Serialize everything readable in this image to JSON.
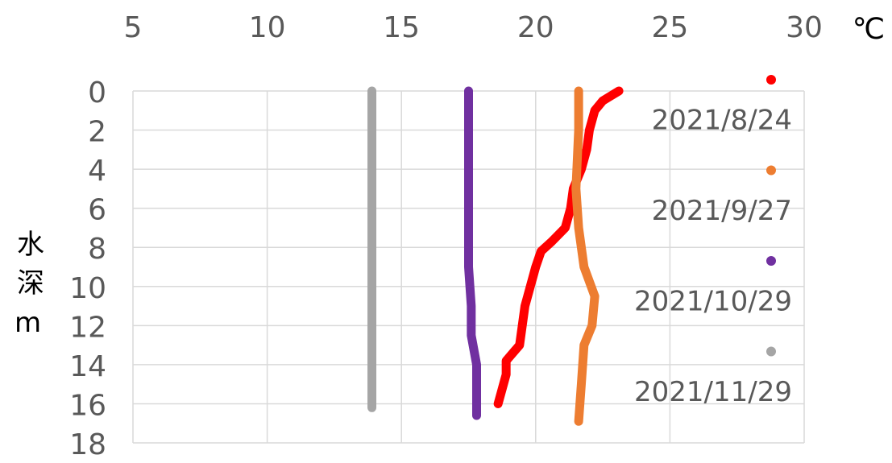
{
  "chart_data": {
    "type": "scatter",
    "x_label": "℃",
    "y_label": "水深m",
    "xlim": [
      5,
      30
    ],
    "xticks": [
      5,
      10,
      15,
      20,
      25,
      30
    ],
    "ylim": [
      0,
      18
    ],
    "yticks": [
      0,
      2,
      4,
      6,
      8,
      10,
      12,
      14,
      16,
      18
    ],
    "y_inverted": true,
    "grid": true,
    "legend": "right",
    "series": [
      {
        "name": "2021/8/24",
        "color": "#ff0000",
        "x": [
          23.1,
          22.5,
          22.2,
          22.0,
          21.9,
          21.7,
          21.4,
          21.3,
          21.1,
          20.6,
          20.2,
          20.0,
          19.8,
          19.6,
          19.5,
          19.4,
          18.9,
          18.9,
          18.6
        ],
        "values": [
          0,
          0.5,
          1,
          2,
          3,
          4,
          5,
          6,
          7,
          7.7,
          8.2,
          9,
          10,
          11,
          12,
          13,
          13.8,
          14.5,
          16
        ]
      },
      {
        "name": "2021/9/27",
        "color": "#ed7d31",
        "x": [
          21.6,
          21.6,
          21.5,
          21.6,
          21.8,
          22.2,
          22.1,
          21.8,
          21.7,
          21.6
        ],
        "values": [
          0,
          2,
          5,
          7,
          9,
          10.5,
          12,
          13,
          15,
          16.9
        ]
      },
      {
        "name": "2021/10/29",
        "color": "#7030a0",
        "x": [
          17.5,
          17.5,
          17.5,
          17.6,
          17.6,
          17.8,
          17.8
        ],
        "values": [
          0,
          6,
          9,
          11,
          12.5,
          14,
          16.6
        ]
      },
      {
        "name": "2021/11/29",
        "color": "#a5a5a5",
        "x": [
          13.9,
          13.9
        ],
        "values": [
          0,
          16.2
        ]
      }
    ]
  }
}
